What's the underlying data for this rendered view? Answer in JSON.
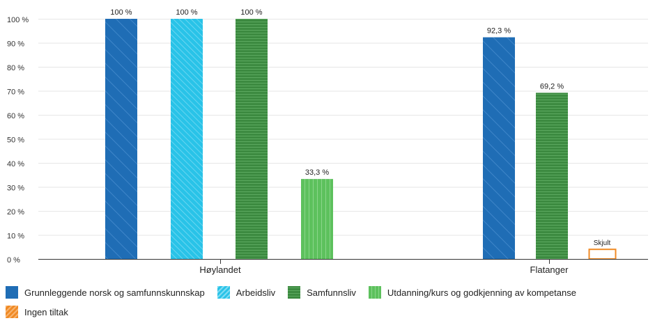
{
  "chart_data": {
    "type": "bar",
    "categories": [
      "Høylandet",
      "Flatanger"
    ],
    "ylim": [
      0,
      100
    ],
    "y_ticks": [
      "0 %",
      "10 %",
      "20 %",
      "30 %",
      "40 %",
      "50 %",
      "60 %",
      "70 %",
      "80 %",
      "90 %",
      "100 %"
    ],
    "grid": true,
    "legend_position": "bottom-left",
    "series": [
      {
        "name": "Grunnleggende norsk og samfunnskunnskap",
        "color": "#1f6db5",
        "pattern": "diagonal",
        "values": [
          100,
          92.3
        ],
        "labels": [
          "100 %",
          "92,3 %"
        ]
      },
      {
        "name": "Arbeidsliv",
        "color": "#29c3e8",
        "pattern": "diagonal-dense",
        "values": [
          100,
          null
        ],
        "labels": [
          "100 %",
          ""
        ]
      },
      {
        "name": "Samfunnsliv",
        "color": "#3c8a40",
        "pattern": "horizontal",
        "values": [
          100,
          69.2
        ],
        "labels": [
          "100 %",
          "69,2 %"
        ]
      },
      {
        "name": "Utdanning/kurs og godkjenning av kompetanse",
        "color": "#5dc15d",
        "pattern": "vertical",
        "values": [
          33.3,
          null
        ],
        "labels": [
          "33,3 %",
          ""
        ]
      },
      {
        "name": "Ingen tiltak",
        "color": "#f08a24",
        "pattern": "none",
        "values": [
          null,
          4
        ],
        "labels": [
          "",
          "Skjult"
        ],
        "hidden_value": true
      }
    ]
  }
}
